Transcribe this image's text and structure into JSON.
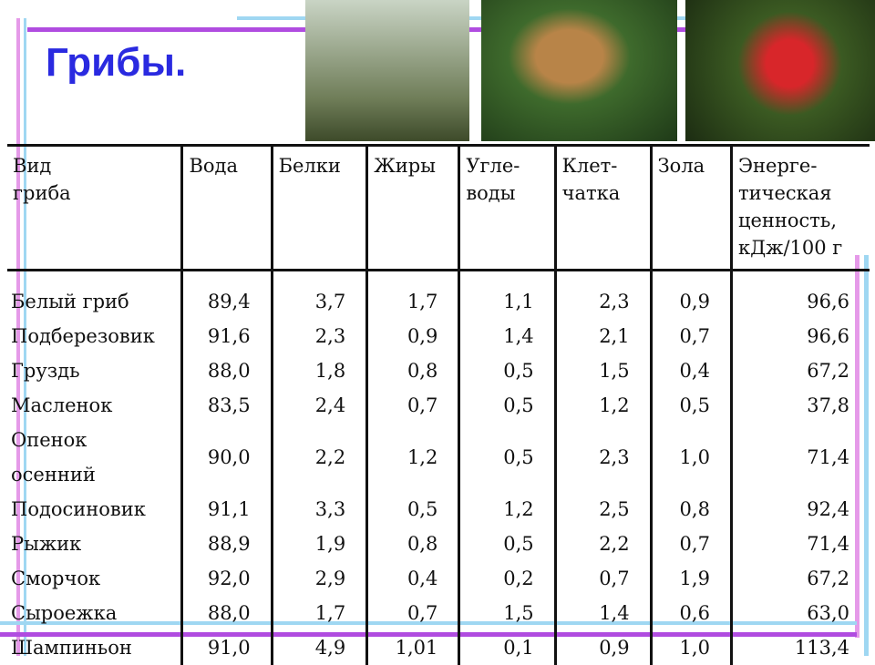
{
  "header": {
    "title": "Грибы."
  },
  "table": {
    "columns": [
      [
        "Вид",
        "гриба"
      ],
      [
        "Вода"
      ],
      [
        "Белки"
      ],
      [
        "Жиры"
      ],
      [
        "Угле-",
        "воды"
      ],
      [
        "Клет-",
        "чатка"
      ],
      [
        "Зола"
      ],
      [
        "Энерге-",
        "тическая",
        "ценность,",
        "кДж/100 г"
      ]
    ],
    "rows": [
      [
        "Белый гриб",
        "89,4",
        "3,7",
        "1,7",
        "1,1",
        "2,3",
        "0,9",
        "96,6"
      ],
      [
        "Подберезовик",
        "91,6",
        "2,3",
        "0,9",
        "1,4",
        "2,1",
        "0,7",
        "96,6"
      ],
      [
        "Груздь",
        "88,0",
        "1,8",
        "0,8",
        "0,5",
        "1,5",
        "0,4",
        "67,2"
      ],
      [
        "Масленок",
        "83,5",
        "2,4",
        "0,7",
        "0,5",
        "1,2",
        "0,5",
        "37,8"
      ],
      [
        "Опенок осенний",
        "90,0",
        "2,2",
        "1,2",
        "0,5",
        "2,3",
        "1,0",
        "71,4"
      ],
      [
        "Подосиновик",
        "91,1",
        "3,3",
        "0,5",
        "1,2",
        "2,5",
        "0,8",
        "92,4"
      ],
      [
        "Рыжик",
        "88,9",
        "1,9",
        "0,8",
        "0,5",
        "2,2",
        "0,7",
        "71,4"
      ],
      [
        "Сморчок",
        "92,0",
        "2,9",
        "0,4",
        "0,2",
        "0,7",
        "1,9",
        "67,2"
      ],
      [
        "Сыроежка",
        "88,0",
        "1,7",
        "0,7",
        "1,5",
        "1,4",
        "0,6",
        "63,0"
      ],
      [
        "Шампиньон",
        "91,0",
        "4,9",
        "1,01",
        "0,1",
        "0,9",
        "1,0",
        "113,4"
      ]
    ]
  }
}
